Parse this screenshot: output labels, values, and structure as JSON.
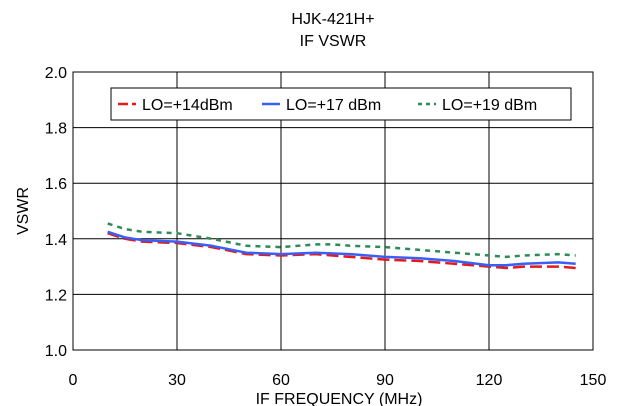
{
  "chart_data": {
    "type": "line",
    "title": "HJK-421H+",
    "subtitle": "IF VSWR",
    "xlabel": "IF FREQUENCY (MHz)",
    "ylabel": "VSWR",
    "xlim": [
      0,
      150
    ],
    "ylim": [
      1.0,
      2.0
    ],
    "xticks": [
      "0",
      "30",
      "60",
      "90",
      "120",
      "150"
    ],
    "yticks": [
      "1.0",
      "1.2",
      "1.4",
      "1.6",
      "1.8",
      "2.0"
    ],
    "grid": true,
    "legend_position": "top",
    "series": [
      {
        "name": "LO=+14dBm",
        "color": "#e41a1c",
        "dash": "dashed",
        "x": [
          10,
          15,
          20,
          30,
          40,
          50,
          60,
          70,
          80,
          90,
          100,
          110,
          120,
          125,
          130,
          140,
          145
        ],
        "y": [
          1.42,
          1.4,
          1.39,
          1.385,
          1.37,
          1.345,
          1.34,
          1.345,
          1.335,
          1.325,
          1.32,
          1.31,
          1.3,
          1.295,
          1.3,
          1.3,
          1.295
        ]
      },
      {
        "name": "LO=+17 dBm",
        "color": "#3a5ff5",
        "dash": "solid",
        "x": [
          10,
          15,
          20,
          30,
          40,
          50,
          60,
          70,
          80,
          90,
          100,
          110,
          120,
          125,
          130,
          140,
          145
        ],
        "y": [
          1.425,
          1.405,
          1.395,
          1.39,
          1.375,
          1.35,
          1.345,
          1.35,
          1.345,
          1.335,
          1.33,
          1.32,
          1.305,
          1.305,
          1.31,
          1.315,
          1.31
        ]
      },
      {
        "name": "LO=+19 dBm",
        "color": "#2e8b57",
        "dash": "dotted",
        "x": [
          10,
          15,
          20,
          30,
          40,
          50,
          60,
          70,
          75,
          80,
          90,
          100,
          110,
          120,
          125,
          130,
          140,
          145
        ],
        "y": [
          1.455,
          1.435,
          1.425,
          1.42,
          1.4,
          1.375,
          1.37,
          1.38,
          1.38,
          1.375,
          1.37,
          1.36,
          1.35,
          1.34,
          1.335,
          1.34,
          1.345,
          1.34
        ]
      }
    ]
  }
}
